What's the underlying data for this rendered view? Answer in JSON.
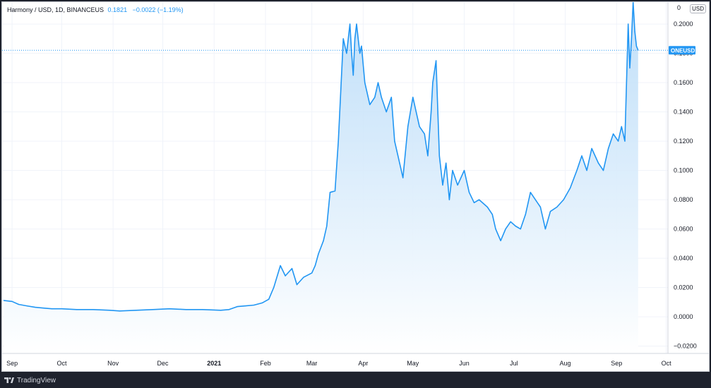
{
  "legend": {
    "symbol": "Harmony / USD, 1D, BINANCEUS",
    "price": "0.1821",
    "change": "−0.0022 (−1.19%)"
  },
  "currency_button": "USD",
  "price_label": "ONEUSD",
  "top_partial_label": "0",
  "footer": {
    "brand": "TradingView"
  },
  "colors": {
    "line": "#2196f3",
    "fill_top": "#b6daf8",
    "fill_bottom": "#ffffff",
    "grid": "#f0f3fa",
    "price_line": "#2196f3"
  },
  "chart_data": {
    "type": "area",
    "series_symbol": "ONEUSD",
    "x_ticks": [
      "Sep",
      "Oct",
      "Nov",
      "Dec",
      "2021",
      "Feb",
      "Mar",
      "Apr",
      "May",
      "Jun",
      "Jul",
      "Aug",
      "Sep",
      "Oct"
    ],
    "y_ticks": [
      "0.2000",
      "0.1800",
      "0.1600",
      "0.1400",
      "0.1200",
      "0.1000",
      "0.0800",
      "0.0600",
      "0.0400",
      "0.0200",
      "0.0000",
      "−0.0200"
    ],
    "ylim": [
      -0.025,
      0.215
    ],
    "xlim": [
      "2020-08-26",
      "2021-10-02"
    ],
    "last_price": 0.1821,
    "grid": true,
    "points": [
      [
        "2020-08-27",
        0.0112
      ],
      [
        "2020-09-01",
        0.0105
      ],
      [
        "2020-09-05",
        0.0085
      ],
      [
        "2020-09-10",
        0.0075
      ],
      [
        "2020-09-15",
        0.0065
      ],
      [
        "2020-09-20",
        0.006
      ],
      [
        "2020-09-25",
        0.0055
      ],
      [
        "2020-10-01",
        0.0055
      ],
      [
        "2020-10-10",
        0.005
      ],
      [
        "2020-10-20",
        0.005
      ],
      [
        "2020-10-30",
        0.0045
      ],
      [
        "2020-11-05",
        0.004
      ],
      [
        "2020-11-15",
        0.0045
      ],
      [
        "2020-11-25",
        0.005
      ],
      [
        "2020-12-05",
        0.0055
      ],
      [
        "2020-12-15",
        0.005
      ],
      [
        "2020-12-25",
        0.005
      ],
      [
        "2021-01-05",
        0.0045
      ],
      [
        "2021-01-10",
        0.005
      ],
      [
        "2021-01-15",
        0.007
      ],
      [
        "2021-01-20",
        0.0075
      ],
      [
        "2021-01-25",
        0.008
      ],
      [
        "2021-01-30",
        0.0095
      ],
      [
        "2021-02-03",
        0.012
      ],
      [
        "2021-02-06",
        0.02
      ],
      [
        "2021-02-10",
        0.035
      ],
      [
        "2021-02-13",
        0.028
      ],
      [
        "2021-02-17",
        0.033
      ],
      [
        "2021-02-20",
        0.022
      ],
      [
        "2021-02-24",
        0.027
      ],
      [
        "2021-03-01",
        0.03
      ],
      [
        "2021-03-03",
        0.035
      ],
      [
        "2021-03-05",
        0.043
      ],
      [
        "2021-03-08",
        0.052
      ],
      [
        "2021-03-10",
        0.062
      ],
      [
        "2021-03-12",
        0.085
      ],
      [
        "2021-03-15",
        0.086
      ],
      [
        "2021-03-17",
        0.12
      ],
      [
        "2021-03-20",
        0.19
      ],
      [
        "2021-03-22",
        0.18
      ],
      [
        "2021-03-24",
        0.2
      ],
      [
        "2021-03-25",
        0.18
      ],
      [
        "2021-03-26",
        0.165
      ],
      [
        "2021-03-27",
        0.19
      ],
      [
        "2021-03-28",
        0.2
      ],
      [
        "2021-03-29",
        0.19
      ],
      [
        "2021-03-30",
        0.18
      ],
      [
        "2021-03-31",
        0.185
      ],
      [
        "2021-04-02",
        0.16
      ],
      [
        "2021-04-05",
        0.145
      ],
      [
        "2021-04-08",
        0.15
      ],
      [
        "2021-04-10",
        0.16
      ],
      [
        "2021-04-12",
        0.15
      ],
      [
        "2021-04-15",
        0.14
      ],
      [
        "2021-04-18",
        0.15
      ],
      [
        "2021-04-20",
        0.12
      ],
      [
        "2021-04-23",
        0.105
      ],
      [
        "2021-04-25",
        0.095
      ],
      [
        "2021-04-28",
        0.13
      ],
      [
        "2021-05-01",
        0.15
      ],
      [
        "2021-05-03",
        0.14
      ],
      [
        "2021-05-05",
        0.13
      ],
      [
        "2021-05-08",
        0.125
      ],
      [
        "2021-05-10",
        0.11
      ],
      [
        "2021-05-12",
        0.14
      ],
      [
        "2021-05-13",
        0.16
      ],
      [
        "2021-05-15",
        0.175
      ],
      [
        "2021-05-17",
        0.11
      ],
      [
        "2021-05-19",
        0.09
      ],
      [
        "2021-05-21",
        0.105
      ],
      [
        "2021-05-23",
        0.08
      ],
      [
        "2021-05-25",
        0.1
      ],
      [
        "2021-05-28",
        0.09
      ],
      [
        "2021-06-01",
        0.1
      ],
      [
        "2021-06-04",
        0.085
      ],
      [
        "2021-06-07",
        0.078
      ],
      [
        "2021-06-10",
        0.08
      ],
      [
        "2021-06-15",
        0.075
      ],
      [
        "2021-06-18",
        0.07
      ],
      [
        "2021-06-20",
        0.06
      ],
      [
        "2021-06-23",
        0.052
      ],
      [
        "2021-06-26",
        0.06
      ],
      [
        "2021-06-29",
        0.065
      ],
      [
        "2021-07-02",
        0.062
      ],
      [
        "2021-07-05",
        0.06
      ],
      [
        "2021-07-08",
        0.07
      ],
      [
        "2021-07-11",
        0.085
      ],
      [
        "2021-07-14",
        0.08
      ],
      [
        "2021-07-17",
        0.075
      ],
      [
        "2021-07-20",
        0.06
      ],
      [
        "2021-07-23",
        0.072
      ],
      [
        "2021-07-27",
        0.075
      ],
      [
        "2021-07-31",
        0.08
      ],
      [
        "2021-08-04",
        0.088
      ],
      [
        "2021-08-08",
        0.1
      ],
      [
        "2021-08-11",
        0.11
      ],
      [
        "2021-08-14",
        0.1
      ],
      [
        "2021-08-17",
        0.115
      ],
      [
        "2021-08-21",
        0.105
      ],
      [
        "2021-08-24",
        0.1
      ],
      [
        "2021-08-27",
        0.115
      ],
      [
        "2021-08-30",
        0.125
      ],
      [
        "2021-09-02",
        0.12
      ],
      [
        "2021-09-04",
        0.13
      ],
      [
        "2021-09-06",
        0.12
      ],
      [
        "2021-09-08",
        0.2
      ],
      [
        "2021-09-09",
        0.17
      ],
      [
        "2021-09-10",
        0.19
      ],
      [
        "2021-09-11",
        0.215
      ],
      [
        "2021-09-12",
        0.195
      ],
      [
        "2021-09-13",
        0.185
      ],
      [
        "2021-09-14",
        0.1821
      ]
    ]
  }
}
